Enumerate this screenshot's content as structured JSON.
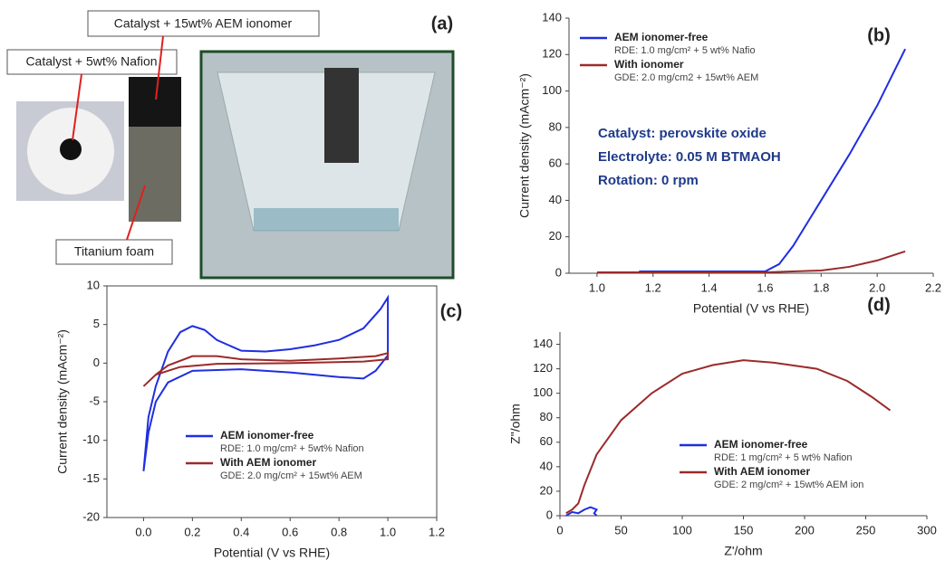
{
  "photo_panel": {
    "panel_label": "(a)",
    "labels": [
      "Catalyst + 15wt% AEM ionomer",
      "Catalyst + 5wt% Nafion",
      "Titanium foam"
    ]
  },
  "chart_data": [
    {
      "type": "line",
      "panel_label": "(b)",
      "xlabel": "Potential (V vs RHE)",
      "ylabel": "Current density (mAcm⁻²)",
      "annotations": [
        "Catalyst: perovskite oxide",
        "Electrolyte: 0.05 M BTMAOH",
        "Rotation: 0 rpm"
      ],
      "xlim": [
        0.9,
        2.2
      ],
      "ylim": [
        0,
        140
      ],
      "xticks": [
        {
          "value": 1.0,
          "label": "1.0"
        },
        1.2,
        1.4,
        1.6,
        1.8,
        {
          "value": 2.0,
          "label": "2.0"
        },
        2.2
      ],
      "yticks": [
        0,
        20,
        40,
        60,
        80,
        100,
        120,
        140
      ],
      "series": [
        {
          "name": "AEM ionomer-free",
          "note": "RDE: 1.0 mg/cm² + 5 wt% Nafio",
          "color": "#1f2ee0",
          "x": [
            1.15,
            1.4,
            1.6,
            1.65,
            1.7,
            1.8,
            1.9,
            2.0,
            2.1
          ],
          "values": [
            1,
            1,
            1,
            5,
            15,
            40,
            65,
            92,
            123
          ]
        },
        {
          "name": "With ionomer",
          "note": "GDE: 2.0 mg/cm2 + 15wt% AEM",
          "color": "#9b2a2a",
          "x": [
            1.0,
            1.3,
            1.6,
            1.8,
            1.9,
            2.0,
            2.1
          ],
          "values": [
            0.5,
            0.5,
            0.5,
            1.5,
            3.5,
            7,
            12
          ]
        }
      ]
    },
    {
      "type": "line",
      "panel_label": "(c)",
      "xlabel": "Potential (V vs RHE)",
      "ylabel": "Current density (mAcm⁻²)",
      "xlim": [
        -0.15,
        1.2
      ],
      "ylim": [
        -20,
        10
      ],
      "xticks": [
        {
          "value": 0,
          "label": "0.0"
        },
        0.2,
        0.4,
        0.6,
        0.8,
        {
          "value": 1,
          "label": "1.0"
        },
        1.2
      ],
      "yticks": [
        -20,
        -15,
        -10,
        -5,
        0,
        5,
        10
      ],
      "series": [
        {
          "name": "AEM ionomer-free",
          "note": "RDE: 1.0 mg/cm² + 5wt% Nafion",
          "color": "#1f2ee0",
          "x": [
            0,
            0.02,
            0.05,
            0.1,
            0.15,
            0.2,
            0.25,
            0.3,
            0.4,
            0.5,
            0.6,
            0.7,
            0.8,
            0.9,
            0.97,
            1.0,
            1.0,
            0.95,
            0.9,
            0.8,
            0.6,
            0.4,
            0.2,
            0.1,
            0.05,
            0.02,
            0
          ],
          "values": [
            -14,
            -7,
            -3,
            1.5,
            4,
            4.8,
            4.3,
            3,
            1.6,
            1.5,
            1.8,
            2.3,
            3,
            4.5,
            7,
            8.5,
            1,
            -1,
            -2,
            -1.8,
            -1.2,
            -0.8,
            -1,
            -2.5,
            -5,
            -9,
            -14
          ]
        },
        {
          "name": "With AEM ionomer",
          "note": "GDE: 2.0 mg/cm² + 15wt% AEM",
          "color": "#9b2a2a",
          "x": [
            0,
            0.05,
            0.1,
            0.2,
            0.3,
            0.4,
            0.6,
            0.8,
            0.95,
            1.0,
            1.0,
            0.9,
            0.6,
            0.3,
            0.15,
            0.05,
            0
          ],
          "values": [
            -3,
            -1.5,
            -0.3,
            0.9,
            0.9,
            0.5,
            0.3,
            0.6,
            0.9,
            1.3,
            0.5,
            0.2,
            0,
            -0.1,
            -0.5,
            -1.5,
            -3
          ]
        }
      ]
    },
    {
      "type": "line",
      "panel_label": "(d)",
      "xlabel": "Z'/ohm",
      "ylabel": "Z\"/ohm",
      "xlim": [
        0,
        300
      ],
      "ylim": [
        0,
        150
      ],
      "xticks": [
        0,
        50,
        100,
        150,
        200,
        250,
        300
      ],
      "yticks": [
        0,
        20,
        40,
        60,
        80,
        100,
        120,
        140
      ],
      "series": [
        {
          "name": "AEM ionomer-free",
          "note": "RDE: 1 mg/cm² + 5 wt% Nafion",
          "color": "#1f2ee0",
          "x": [
            5,
            10,
            15,
            20,
            25,
            30,
            28,
            30
          ],
          "values": [
            0,
            3,
            2,
            5,
            7,
            5,
            2,
            0
          ]
        },
        {
          "name": "With AEM ionomer",
          "note": "GDE: 2 mg/cm² + 15wt% AEM ion",
          "color": "#9b2a2a",
          "x": [
            5,
            10,
            15,
            20,
            30,
            50,
            75,
            100,
            125,
            150,
            175,
            210,
            235,
            255,
            270
          ],
          "values": [
            2,
            5,
            10,
            25,
            50,
            78,
            100,
            116,
            123,
            127,
            125,
            120,
            110,
            97,
            86
          ]
        }
      ]
    }
  ]
}
